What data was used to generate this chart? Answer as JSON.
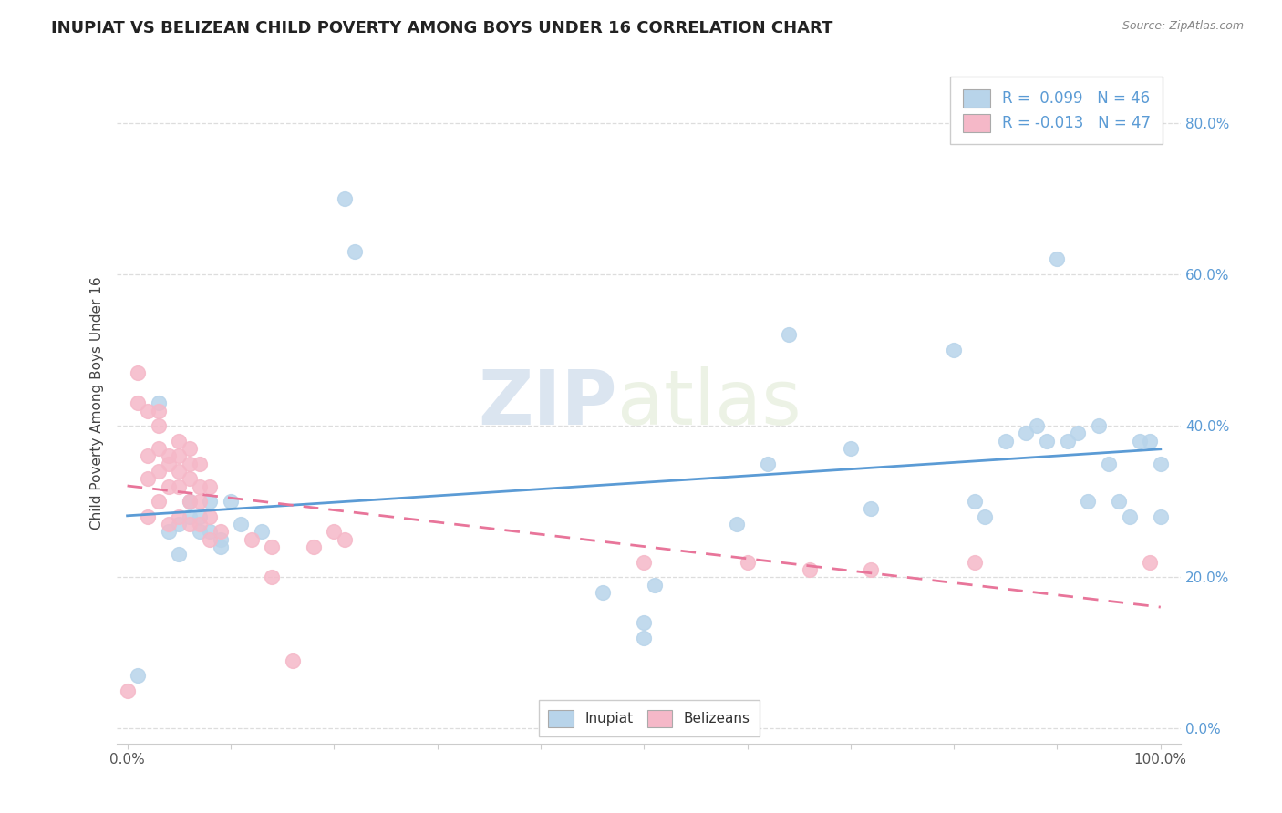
{
  "title": "INUPIAT VS BELIZEAN CHILD POVERTY AMONG BOYS UNDER 16 CORRELATION CHART",
  "source": "Source: ZipAtlas.com",
  "ylabel": "Child Poverty Among Boys Under 16",
  "xlim": [
    -0.01,
    1.02
  ],
  "ylim": [
    -0.02,
    0.88
  ],
  "yticks": [
    0.0,
    0.2,
    0.4,
    0.6,
    0.8
  ],
  "ytick_labels": [
    "0.0%",
    "20.0%",
    "40.0%",
    "60.0%",
    "80.0%"
  ],
  "xticks": [
    0.0,
    0.1,
    0.2,
    0.3,
    0.4,
    0.5,
    0.6,
    0.7,
    0.8,
    0.9,
    1.0
  ],
  "xtick_labels": [
    "0.0%",
    "",
    "",
    "",
    "",
    "",
    "",
    "",
    "",
    "",
    "100.0%"
  ],
  "legend_labels": [
    "Inupiat",
    "Belizeans"
  ],
  "inupiat_R": 0.099,
  "inupiat_N": 46,
  "belizean_R": -0.013,
  "belizean_N": 47,
  "inupiat_color": "#b8d4ea",
  "belizean_color": "#f5b8c8",
  "inupiat_line_color": "#5b9bd5",
  "belizean_line_color": "#e8759a",
  "background_color": "#ffffff",
  "watermark_zip": "ZIP",
  "watermark_atlas": "atlas",
  "grid_color": "#dddddd",
  "ytick_color": "#5b9bd5",
  "xtick_color": "#555555",
  "inupiat_x": [
    0.01,
    0.03,
    0.04,
    0.05,
    0.05,
    0.06,
    0.06,
    0.07,
    0.07,
    0.08,
    0.08,
    0.09,
    0.09,
    0.1,
    0.11,
    0.13,
    0.21,
    0.22,
    0.46,
    0.5,
    0.5,
    0.51,
    0.59,
    0.62,
    0.64,
    0.7,
    0.72,
    0.8,
    0.82,
    0.83,
    0.85,
    0.87,
    0.88,
    0.89,
    0.9,
    0.91,
    0.92,
    0.93,
    0.94,
    0.95,
    0.96,
    0.97,
    0.98,
    0.99,
    1.0,
    1.0
  ],
  "inupiat_y": [
    0.07,
    0.43,
    0.26,
    0.27,
    0.23,
    0.3,
    0.28,
    0.28,
    0.26,
    0.3,
    0.26,
    0.25,
    0.24,
    0.3,
    0.27,
    0.26,
    0.7,
    0.63,
    0.18,
    0.14,
    0.12,
    0.19,
    0.27,
    0.35,
    0.52,
    0.37,
    0.29,
    0.5,
    0.3,
    0.28,
    0.38,
    0.39,
    0.4,
    0.38,
    0.62,
    0.38,
    0.39,
    0.3,
    0.4,
    0.35,
    0.3,
    0.28,
    0.38,
    0.38,
    0.35,
    0.28
  ],
  "belizean_x": [
    0.0,
    0.01,
    0.01,
    0.02,
    0.02,
    0.02,
    0.02,
    0.03,
    0.03,
    0.03,
    0.03,
    0.03,
    0.04,
    0.04,
    0.04,
    0.04,
    0.05,
    0.05,
    0.05,
    0.05,
    0.05,
    0.06,
    0.06,
    0.06,
    0.06,
    0.06,
    0.07,
    0.07,
    0.07,
    0.07,
    0.08,
    0.08,
    0.08,
    0.09,
    0.12,
    0.14,
    0.14,
    0.16,
    0.18,
    0.2,
    0.21,
    0.5,
    0.6,
    0.66,
    0.72,
    0.82,
    0.99
  ],
  "belizean_y": [
    0.05,
    0.43,
    0.47,
    0.42,
    0.36,
    0.33,
    0.28,
    0.42,
    0.4,
    0.37,
    0.34,
    0.3,
    0.36,
    0.35,
    0.32,
    0.27,
    0.38,
    0.36,
    0.34,
    0.32,
    0.28,
    0.37,
    0.35,
    0.33,
    0.3,
    0.27,
    0.35,
    0.32,
    0.3,
    0.27,
    0.32,
    0.28,
    0.25,
    0.26,
    0.25,
    0.24,
    0.2,
    0.09,
    0.24,
    0.26,
    0.25,
    0.22,
    0.22,
    0.21,
    0.21,
    0.22,
    0.22
  ]
}
